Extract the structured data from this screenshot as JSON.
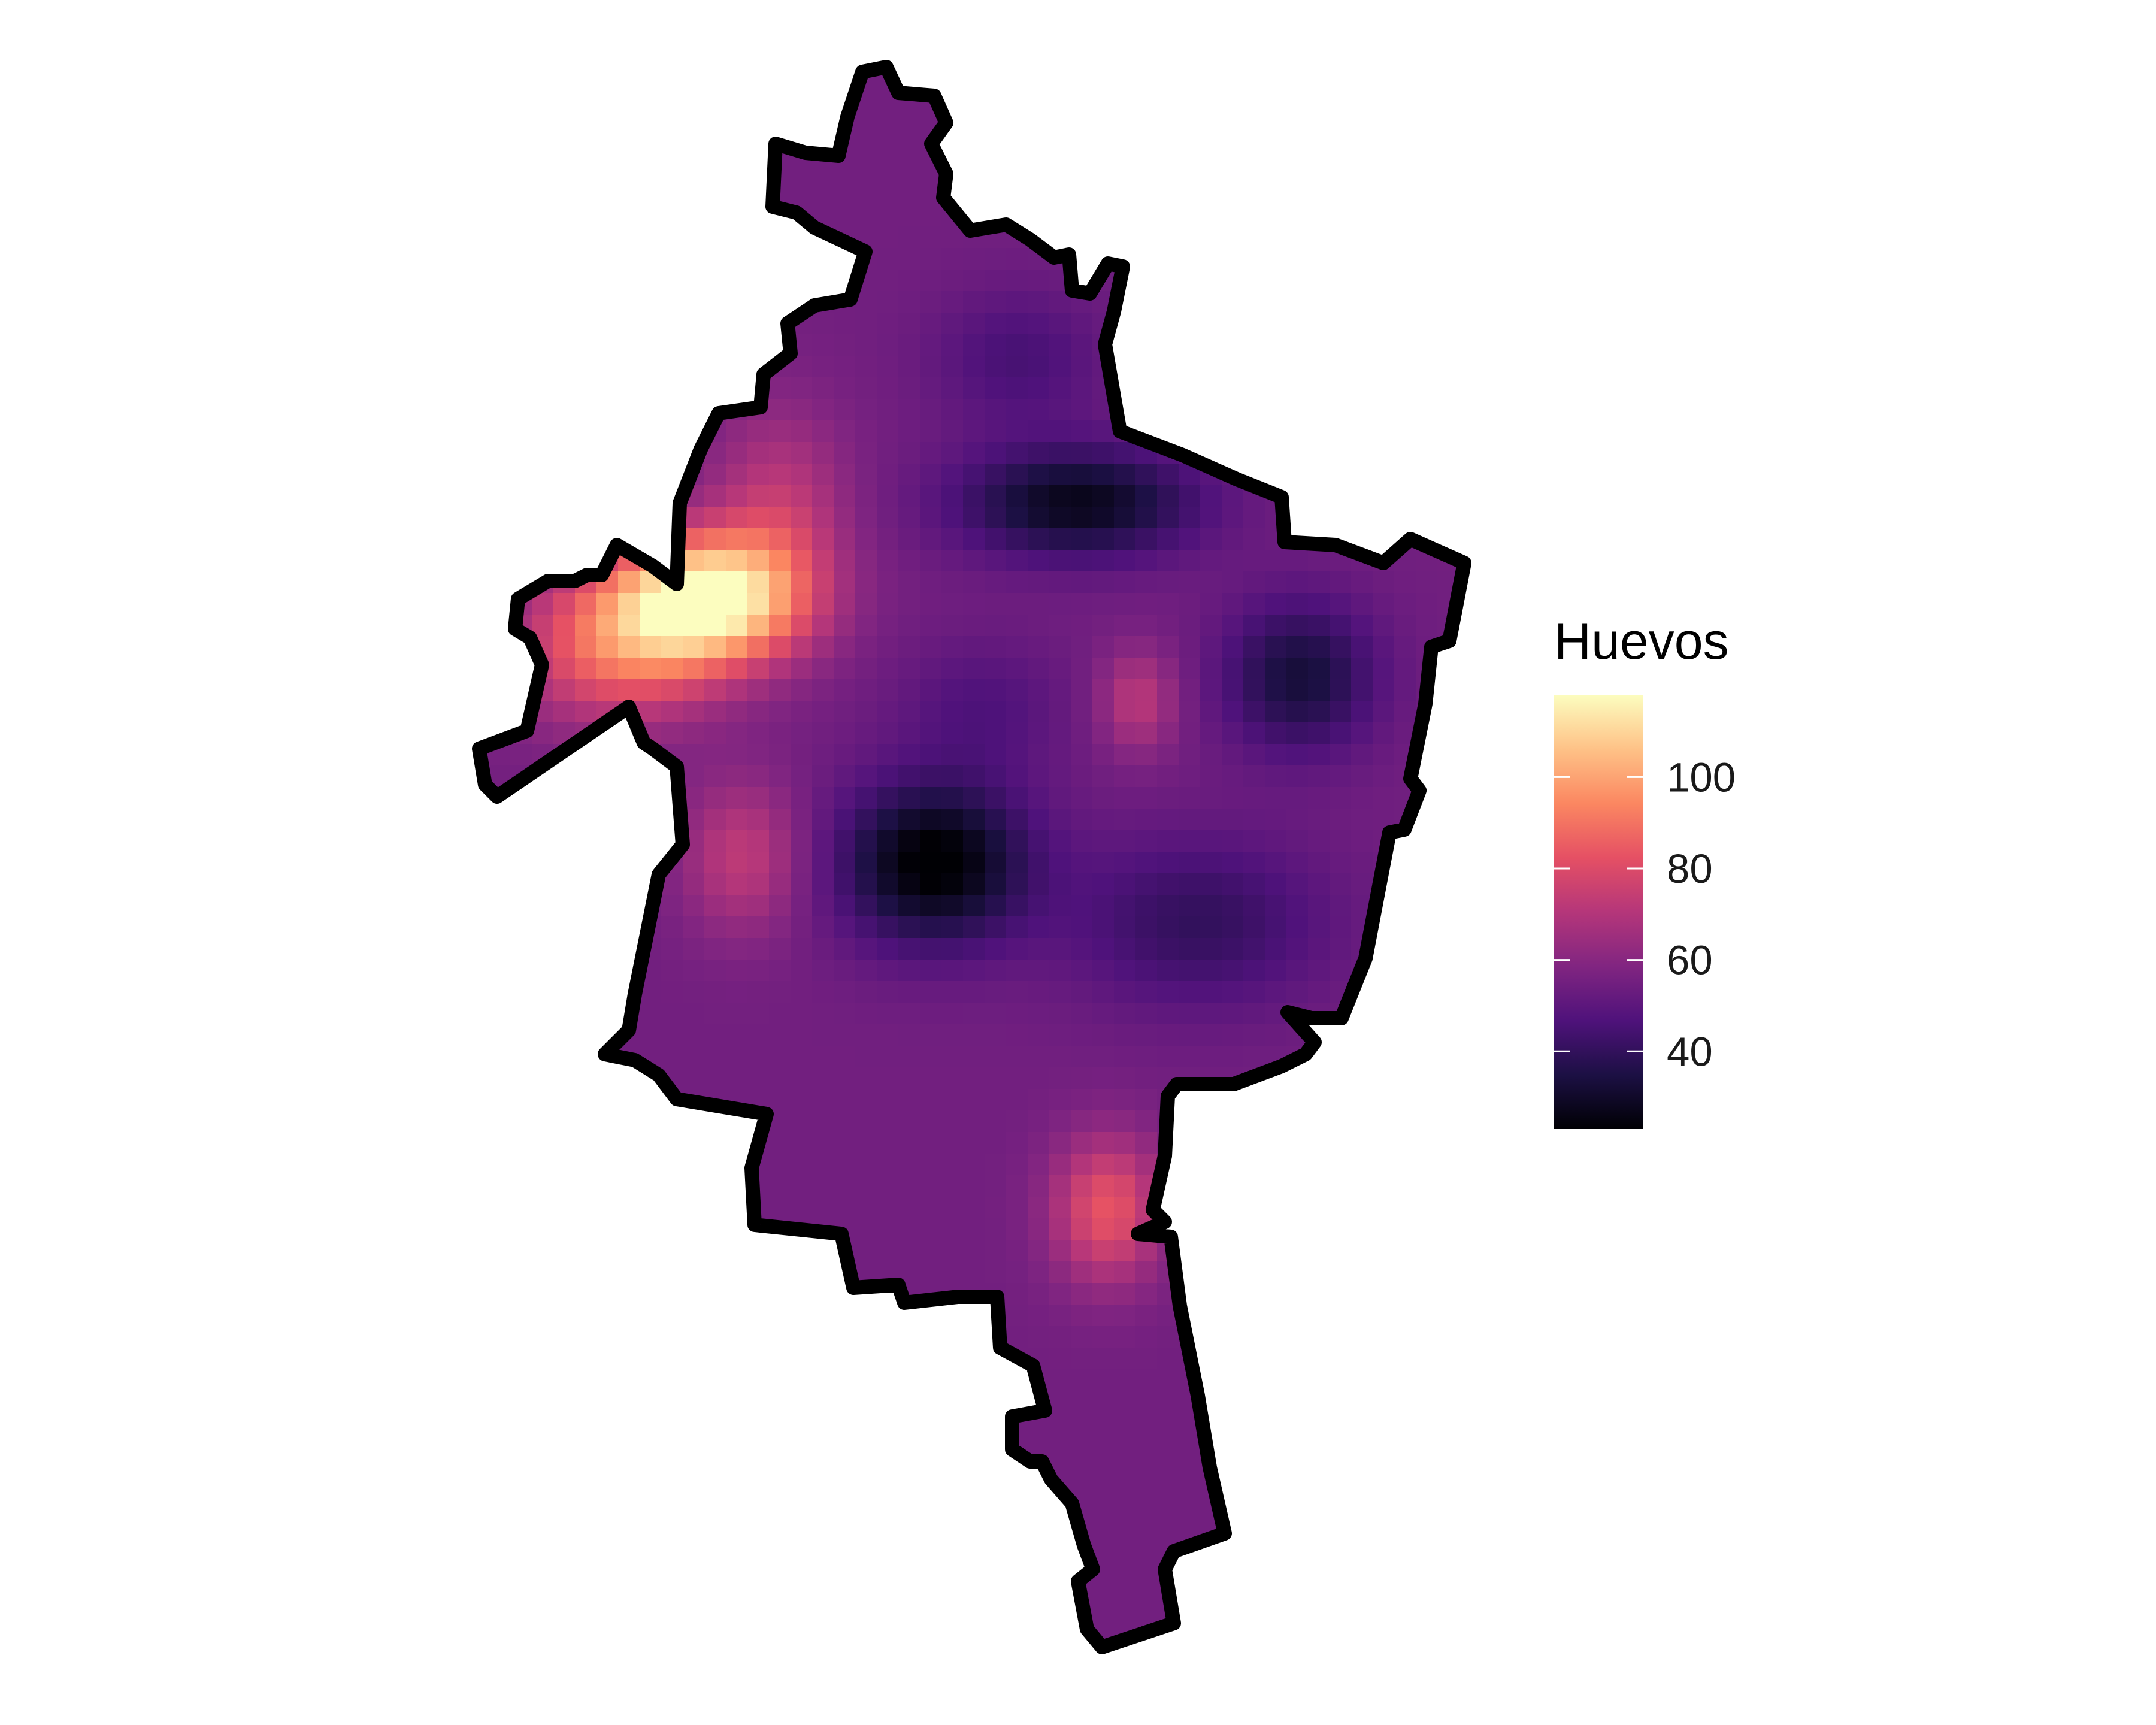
{
  "legend": {
    "title": "Huevos",
    "min": 23,
    "max": 118,
    "ticks": [
      {
        "value": 40,
        "label": "40"
      },
      {
        "value": 60,
        "label": "60"
      },
      {
        "value": 80,
        "label": "80"
      },
      {
        "value": 100,
        "label": "100"
      }
    ],
    "colors": [
      "#000004",
      "#1c1044",
      "#4f127b",
      "#812581",
      "#b5367a",
      "#e55064",
      "#fb8761",
      "#fec287",
      "#fcfdbf"
    ]
  },
  "chart_data": {
    "type": "heatmap",
    "variable": "Huevos",
    "value_range": [
      23,
      118
    ],
    "hotspots": [
      {
        "area": "west lobe",
        "value": 118
      },
      {
        "area": "south-central",
        "value": 80
      },
      {
        "area": "east-central",
        "value": 70
      }
    ],
    "coldspots": [
      {
        "area": "center",
        "value": 23
      },
      {
        "area": "north-center",
        "value": 28
      },
      {
        "area": "east",
        "value": 32
      }
    ],
    "background_value": 55
  }
}
